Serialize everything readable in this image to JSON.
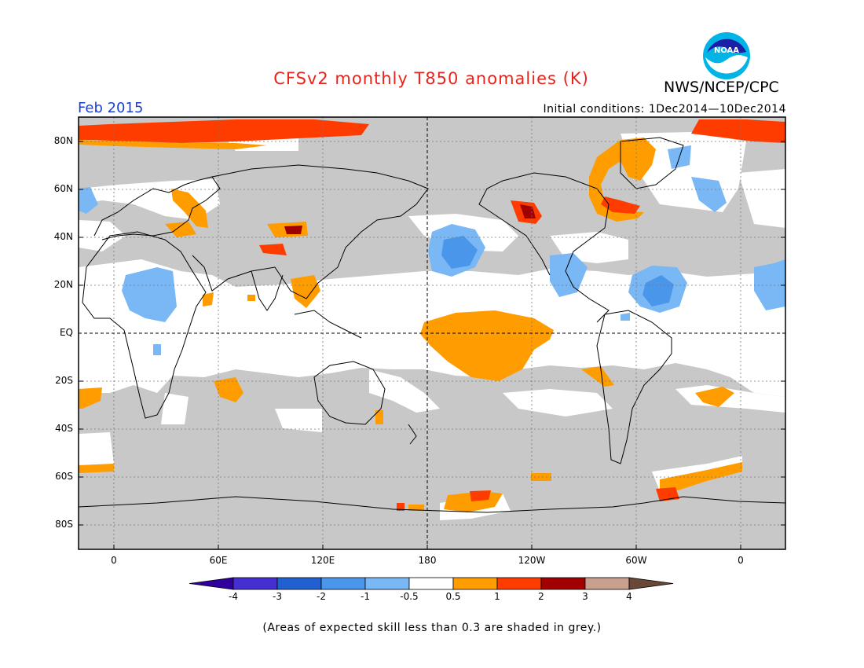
{
  "header": {
    "title": "CFSv2 monthly T850 anomalies (K)",
    "organization": "NWS/NCEP/CPC",
    "period": "Feb 2015",
    "initial_conditions": "Initial conditions: 1Dec2014—10Dec2014",
    "logo_text": "NOAA"
  },
  "axes": {
    "lat_labels": [
      "80N",
      "60N",
      "40N",
      "20N",
      "EQ",
      "20S",
      "40S",
      "60S",
      "80S"
    ],
    "lon_labels": [
      "0",
      "60E",
      "120E",
      "180",
      "120W",
      "60W",
      "0"
    ]
  },
  "colorbar": {
    "labels": [
      "-4",
      "-3",
      "-2",
      "-1",
      "-0.5",
      "0.5",
      "1",
      "2",
      "3",
      "4"
    ],
    "colors": [
      "#30009e",
      "#4430d0",
      "#2060d0",
      "#4a96ea",
      "#7ab8f5",
      "#ffffff",
      "#ff9c00",
      "#ff3c00",
      "#a00000",
      "#c9a08e",
      "#6a4838"
    ]
  },
  "legend_colors": {
    "low_skill_grey": "#c8c8c8",
    "warm_05_1": "#ff9c00",
    "warm_1_2": "#ff3c00",
    "warm_2_3": "#a00000",
    "cool_05_1": "#7ab8f5",
    "cool_1_2": "#4a96ea",
    "cool_2_3": "#2060d0"
  },
  "footnote": "(Areas of expected skill less than 0.3 are shaded in grey.)"
}
